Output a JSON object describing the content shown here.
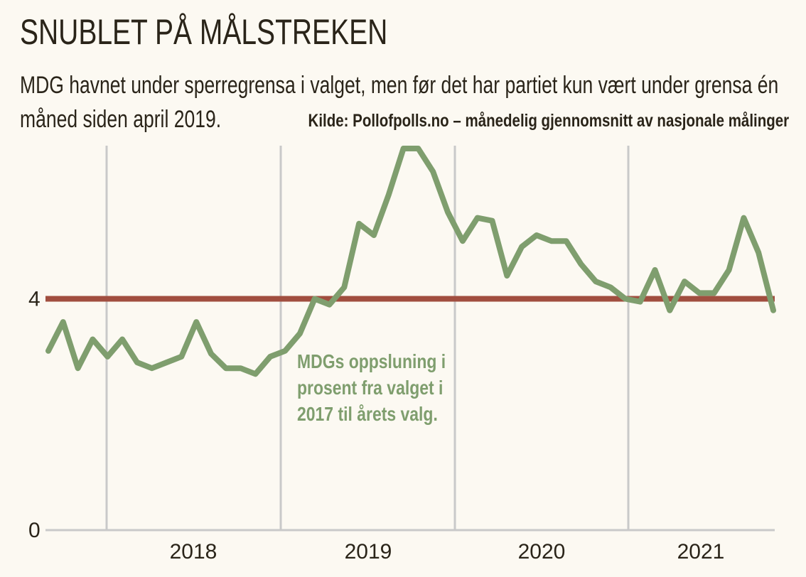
{
  "title": "SNUBLET PÅ MÅLSTREKEN",
  "subtitle": "MDG havnet under sperregrensa i valget, men før det har partiet kun vært under grensa én måned siden april 2019.",
  "source": "Kilde: Pollofpolls.no – månedelig gjennomsnitt av nasjonale målinger",
  "annotation": "MDGs oppsluning i prosent fra valget i 2017 til årets valg.",
  "colors": {
    "background": "#fcf9f2",
    "line": "#7f9e6e",
    "threshold": "#a14e3f",
    "grid": "#c9c9c9",
    "text": "#2a2419"
  },
  "chart_data": {
    "type": "line",
    "title": "SNUBLET PÅ MÅLSTREKEN",
    "xlabel": "",
    "ylabel": "",
    "x_tick_labels": [
      "2018",
      "2019",
      "2020",
      "2021"
    ],
    "y_tick_labels": [
      "0",
      "4"
    ],
    "ylim": [
      0,
      6.6
    ],
    "grid": "vertical year separators",
    "threshold": {
      "value": 4,
      "label": "4"
    },
    "series": [
      {
        "values": [
          3.1,
          3.6,
          2.8,
          3.3,
          3.0,
          3.3,
          2.9,
          2.8,
          2.9,
          3.0,
          3.6,
          3.05,
          2.8,
          2.8,
          2.7,
          3.0,
          3.1,
          3.4,
          4.0,
          3.9,
          4.2,
          5.3,
          5.1,
          5.8,
          6.6,
          6.6,
          6.2,
          5.5,
          5.0,
          5.4,
          5.35,
          4.4,
          4.9,
          5.1,
          5.0,
          5.0,
          4.6,
          4.3,
          4.2,
          4.0,
          3.95,
          4.5,
          3.8,
          4.3,
          4.1,
          4.1,
          4.5,
          5.4,
          4.8,
          3.8
        ]
      }
    ]
  }
}
